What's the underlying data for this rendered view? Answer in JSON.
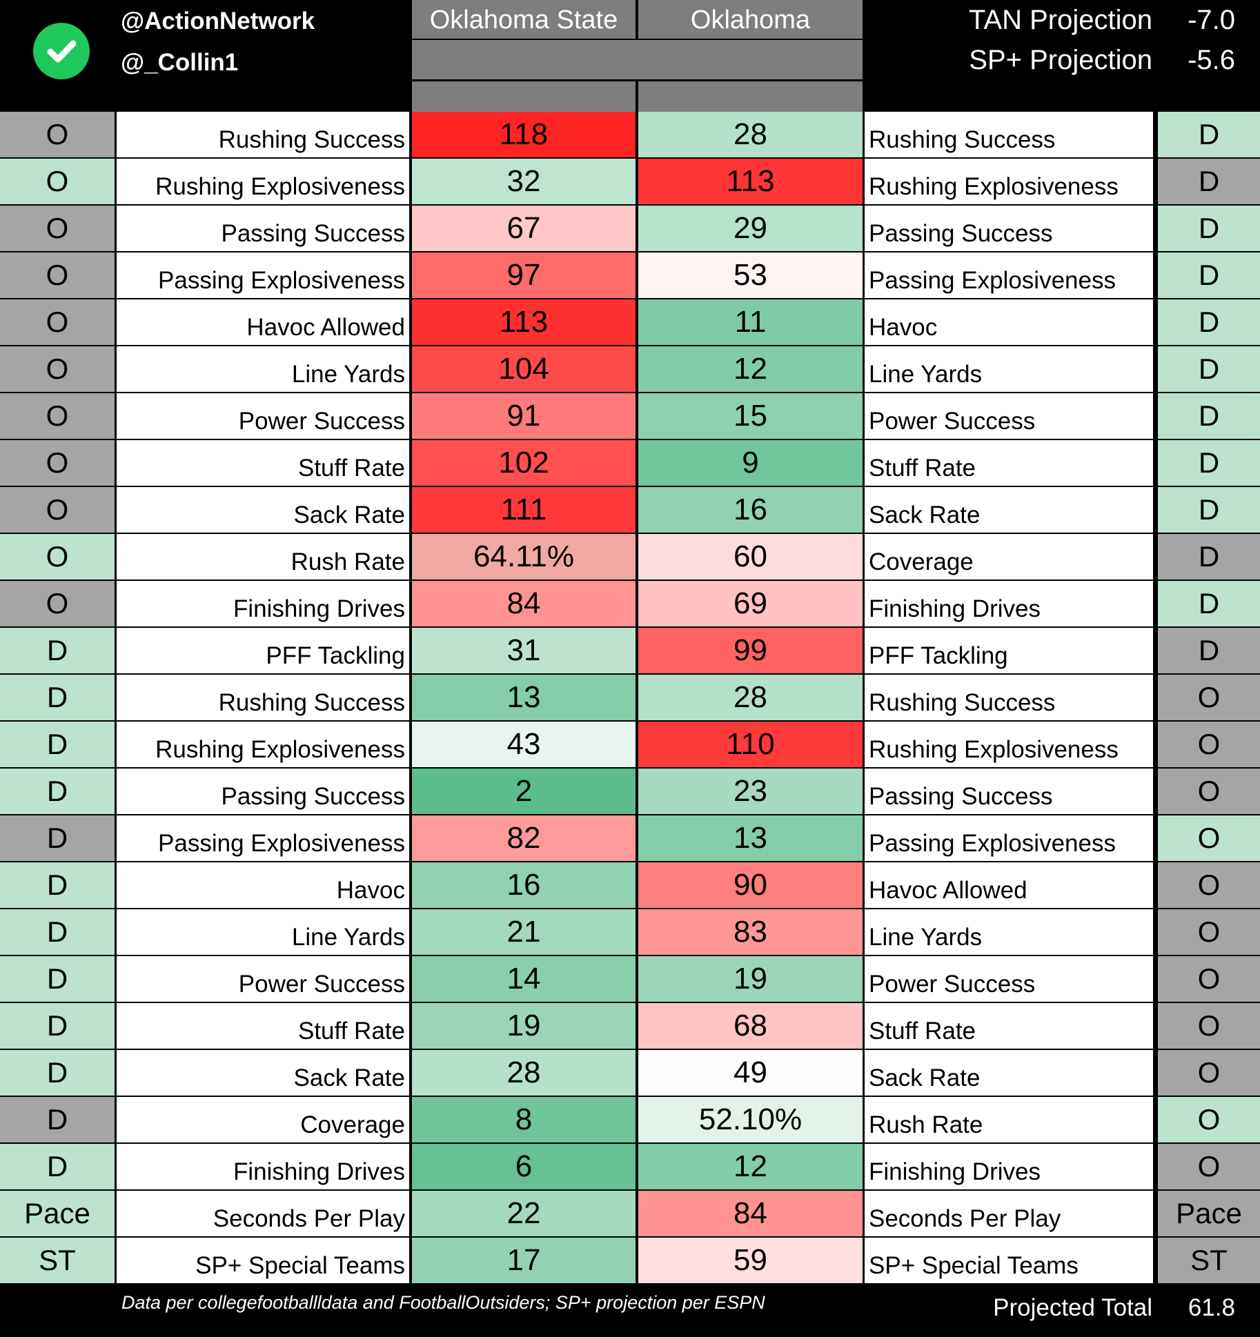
{
  "header": {
    "handle_primary": "@ActionNetwork",
    "handle_secondary": "@_Collin1",
    "team_left": "Oklahoma State",
    "team_right": "Oklahoma",
    "tan_projection_label": "TAN Projection",
    "tan_projection_value": "-7.0",
    "sp_projection_label": "SP+ Projection",
    "sp_projection_value": "-5.6",
    "check_icon": "check-circle-icon"
  },
  "colors": {
    "check_green": "#1ec95b",
    "side_green": "#bde3cf",
    "side_gray": "#a5a5a5",
    "header_gray": "#7e7e7e"
  },
  "rows": [
    {
      "ls": "O",
      "ll": "Rushing Success",
      "lv": "118",
      "rv": "28",
      "rl": "Rushing Success",
      "rs": "D",
      "lsc": "gray",
      "rsc": "green",
      "lvc": "#ff2424",
      "rvc": "#b5e1cb"
    },
    {
      "ls": "O",
      "ll": "Rushing Explosiveness",
      "lv": "32",
      "rv": "113",
      "rl": "Rushing Explosiveness",
      "rs": "D",
      "lsc": "green",
      "rsc": "gray",
      "lvc": "#bfe5d1",
      "rvc": "#ff3535"
    },
    {
      "ls": "O",
      "ll": "Passing Success",
      "lv": "67",
      "rv": "29",
      "rl": "Passing Success",
      "rs": "D",
      "lsc": "gray",
      "rsc": "green",
      "lvc": "#ffc7c7",
      "rvc": "#b7e2cc"
    },
    {
      "ls": "O",
      "ll": "Passing Explosiveness",
      "lv": "97",
      "rv": "53",
      "rl": "Passing Explosiveness",
      "rs": "D",
      "lsc": "gray",
      "rsc": "green",
      "lvc": "#ff6a6a",
      "rvc": "#fff3f3"
    },
    {
      "ls": "O",
      "ll": "Havoc Allowed",
      "lv": "113",
      "rv": "11",
      "rl": "Havoc",
      "rs": "D",
      "lsc": "gray",
      "rsc": "green",
      "lvc": "#ff3030",
      "rvc": "#7fcba5"
    },
    {
      "ls": "O",
      "ll": "Line Yards",
      "lv": "104",
      "rv": "12",
      "rl": "Line Yards",
      "rs": "D",
      "lsc": "gray",
      "rsc": "green",
      "lvc": "#ff4a4a",
      "rvc": "#82cca7"
    },
    {
      "ls": "O",
      "ll": "Power Success",
      "lv": "91",
      "rv": "15",
      "rl": "Power Success",
      "rs": "D",
      "lsc": "gray",
      "rsc": "green",
      "lvc": "#ff7a7a",
      "rvc": "#8dd1ae"
    },
    {
      "ls": "O",
      "ll": "Stuff Rate",
      "lv": "102",
      "rv": "9",
      "rl": "Stuff Rate",
      "rs": "D",
      "lsc": "gray",
      "rsc": "green",
      "lvc": "#ff4f4f",
      "rvc": "#72c69b"
    },
    {
      "ls": "O",
      "ll": "Sack Rate",
      "lv": "111",
      "rv": "16",
      "rl": "Sack Rate",
      "rs": "D",
      "lsc": "gray",
      "rsc": "green",
      "lvc": "#ff3939",
      "rvc": "#90d2b1"
    },
    {
      "ls": "O",
      "ll": "Rush Rate",
      "lv": "64.11%",
      "rv": "60",
      "rl": "Coverage",
      "rs": "D",
      "lsc": "green",
      "rsc": "gray",
      "lvc": "#efa9a2",
      "rvc": "#ffdcdc"
    },
    {
      "ls": "O",
      "ll": "Finishing Drives",
      "lv": "84",
      "rv": "69",
      "rl": "Finishing Drives",
      "rs": "D",
      "lsc": "gray",
      "rsc": "green",
      "lvc": "#ff9393",
      "rvc": "#ffc1c1"
    },
    {
      "ls": "D",
      "ll": "PFF Tackling",
      "lv": "31",
      "rv": "99",
      "rl": "PFF Tackling",
      "rs": "D",
      "lsc": "green",
      "rsc": "gray",
      "lvc": "#bde3cf",
      "rvc": "#ff6262"
    },
    {
      "ls": "D",
      "ll": "Rushing Success",
      "lv": "13",
      "rv": "28",
      "rl": "Rushing Success",
      "rs": "O",
      "lsc": "green",
      "rsc": "gray",
      "lvc": "#84cda8",
      "rvc": "#b5e1cb"
    },
    {
      "ls": "D",
      "ll": "Rushing Explosiveness",
      "lv": "43",
      "rv": "110",
      "rl": "Rushing Explosiveness",
      "rs": "O",
      "lsc": "green",
      "rsc": "gray",
      "lvc": "#e8f5ee",
      "rvc": "#ff3a3a"
    },
    {
      "ls": "D",
      "ll": "Passing Success",
      "lv": "2",
      "rv": "23",
      "rl": "Passing Success",
      "rs": "O",
      "lsc": "green",
      "rsc": "gray",
      "lvc": "#5bbd8c",
      "rvc": "#a6dac0"
    },
    {
      "ls": "D",
      "ll": "Passing Explosiveness",
      "lv": "82",
      "rv": "13",
      "rl": "Passing Explosiveness",
      "rs": "O",
      "lsc": "gray",
      "rsc": "green",
      "lvc": "#ff9a9a",
      "rvc": "#84cda8"
    },
    {
      "ls": "D",
      "ll": "Havoc",
      "lv": "16",
      "rv": "90",
      "rl": "Havoc Allowed",
      "rs": "O",
      "lsc": "green",
      "rsc": "gray",
      "lvc": "#90d2b1",
      "rvc": "#ff7e7e"
    },
    {
      "ls": "D",
      "ll": "Line Yards",
      "lv": "21",
      "rv": "83",
      "rl": "Line Yards",
      "rs": "O",
      "lsc": "green",
      "rsc": "gray",
      "lvc": "#a2d8bc",
      "rvc": "#ff9696"
    },
    {
      "ls": "D",
      "ll": "Power Success",
      "lv": "14",
      "rv": "19",
      "rl": "Power Success",
      "rs": "O",
      "lsc": "green",
      "rsc": "gray",
      "lvc": "#89cfab",
      "rvc": "#9ad5b7"
    },
    {
      "ls": "D",
      "ll": "Stuff Rate",
      "lv": "19",
      "rv": "68",
      "rl": "Stuff Rate",
      "rs": "O",
      "lsc": "green",
      "rsc": "gray",
      "lvc": "#9ad5b7",
      "rvc": "#ffc4c4"
    },
    {
      "ls": "D",
      "ll": "Sack Rate",
      "lv": "28",
      "rv": "49",
      "rl": "Sack Rate",
      "rs": "O",
      "lsc": "green",
      "rsc": "gray",
      "lvc": "#b5e1cb",
      "rvc": "#fdfdfd"
    },
    {
      "ls": "D",
      "ll": "Coverage",
      "lv": "8",
      "rv": "52.10%",
      "rl": "Rush Rate",
      "rs": "O",
      "lsc": "gray",
      "rsc": "green",
      "lvc": "#6fc499",
      "rvc": "#e2f2e9"
    },
    {
      "ls": "D",
      "ll": "Finishing Drives",
      "lv": "6",
      "rv": "12",
      "rl": "Finishing Drives",
      "rs": "O",
      "lsc": "green",
      "rsc": "gray",
      "lvc": "#67c194",
      "rvc": "#82cca7"
    },
    {
      "ls": "Pace",
      "ll": "Seconds Per Play",
      "lv": "22",
      "rv": "84",
      "rl": "Seconds Per Play",
      "rs": "Pace",
      "lsc": "green",
      "rsc": "gray",
      "lvc": "#a4d9be",
      "rvc": "#ff9393"
    },
    {
      "ls": "ST",
      "ll": "SP+ Special Teams",
      "lv": "17",
      "rv": "59",
      "rl": "SP+ Special Teams",
      "rs": "ST",
      "lsc": "green",
      "rsc": "gray",
      "lvc": "#93d3b3",
      "rvc": "#ffdfdf"
    }
  ],
  "footer": {
    "source": "Data per collegefootballldata and FootballOutsiders; SP+ projection per ESPN",
    "total_label": "Projected Total",
    "total_value": "61.8"
  }
}
